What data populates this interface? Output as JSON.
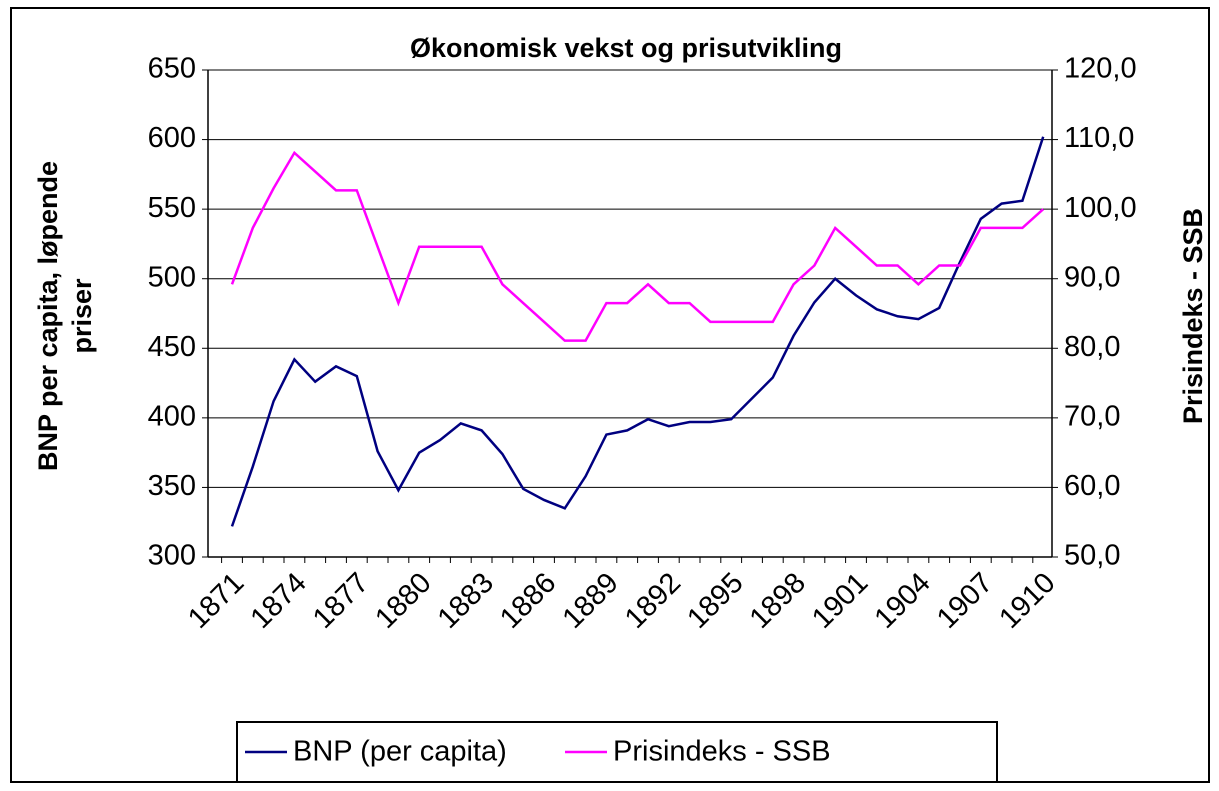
{
  "chart_data": {
    "type": "line",
    "title": "Økonomisk vekst og prisutvikling",
    "ylabel": [
      "BNP per capita, løpende",
      "priser"
    ],
    "y2label": "Prisindeks - SSB",
    "categories": [
      "1871",
      null,
      null,
      "1874",
      null,
      null,
      "1877",
      null,
      null,
      "1880",
      null,
      null,
      "1883",
      null,
      null,
      "1886",
      null,
      null,
      "1889",
      null,
      null,
      "1892",
      null,
      null,
      "1895",
      null,
      null,
      "1898",
      null,
      null,
      "1901",
      null,
      null,
      "1904",
      null,
      null,
      "1907",
      null,
      null,
      "1910"
    ],
    "series": [
      {
        "name": "BNP (per capita)",
        "color": "#000080",
        "values": [
          322,
          365,
          412,
          442,
          426,
          437,
          430,
          376,
          348,
          375,
          384,
          396,
          391,
          374,
          349,
          341,
          335,
          358,
          388,
          391,
          399,
          394,
          397,
          397,
          399,
          414,
          429,
          459,
          483,
          500,
          488,
          478,
          473,
          471,
          479,
          512,
          543,
          554,
          556,
          602
        ]
      },
      {
        "name": "Prisindeks - SSB",
        "color": "#ff00ff",
        "axis": "y2",
        "values": [
          89.2,
          97.3,
          103,
          108.1,
          105.4,
          102.7,
          102.7,
          94.6,
          86.5,
          94.6,
          94.6,
          94.6,
          94.6,
          89.2,
          86.5,
          83.8,
          81.1,
          81.1,
          86.5,
          86.5,
          89.2,
          86.5,
          86.5,
          83.8,
          83.8,
          83.8,
          83.8,
          89.2,
          91.9,
          97.3,
          94.6,
          91.9,
          91.9,
          89.2,
          91.9,
          91.9,
          97.3,
          97.3,
          97.3,
          100.0
        ]
      }
    ],
    "ylim": [
      300,
      650
    ],
    "yticks": [
      300,
      350,
      400,
      450,
      500,
      550,
      600,
      650
    ],
    "y2lim": [
      50,
      120
    ],
    "y2ticks": [
      {
        "value": 50,
        "label": "50,0"
      },
      {
        "value": 60,
        "label": "60,0"
      },
      {
        "value": 70,
        "label": "70,0"
      },
      {
        "value": 80,
        "label": "80,0"
      },
      {
        "value": 90,
        "label": "90,0"
      },
      {
        "value": 100,
        "label": "100,0"
      },
      {
        "value": 110,
        "label": "110,0"
      },
      {
        "value": 120,
        "label": "120,0"
      }
    ],
    "grid": true,
    "legend": "bottom"
  }
}
